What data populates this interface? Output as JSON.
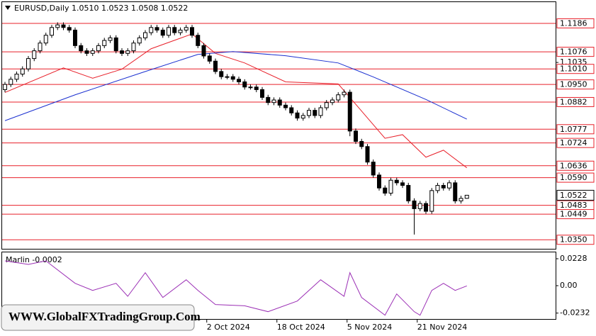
{
  "chart_data": {
    "type": "candlestick",
    "title": "EURUSD,Daily  1.0510 1.0523 1.0508 1.0522",
    "ylim": [
      1.0315,
      1.1268
    ],
    "yticks": [
      1.1035
    ],
    "open": [
      1.093,
      1.095,
      1.097,
      1.099,
      1.101,
      1.105,
      1.108,
      1.111,
      1.114,
      1.117,
      1.118,
      1.117,
      1.116,
      1.11,
      1.108,
      1.107,
      1.108,
      1.11,
      1.112,
      1.113,
      1.108,
      1.107,
      1.108,
      1.111,
      1.113,
      1.115,
      1.117,
      1.116,
      1.114,
      1.117,
      1.115,
      1.116,
      1.117,
      1.114,
      1.11,
      1.106,
      1.104,
      1.1,
      1.098,
      1.098,
      1.097,
      1.096,
      1.094,
      1.094,
      1.093,
      1.09,
      1.088,
      1.089,
      1.087,
      1.086,
      1.084,
      1.082,
      1.083,
      1.085,
      1.083,
      1.086,
      1.088,
      1.089,
      1.091,
      1.092,
      1.077,
      1.073,
      1.071,
      1.065,
      1.06,
      1.055,
      1.053,
      1.058,
      1.057,
      1.056,
      1.05,
      1.047,
      1.049,
      1.046,
      1.054,
      1.056,
      1.055,
      1.057,
      1.05,
      1.051
    ],
    "high": [
      1.096,
      1.098,
      1.1,
      1.102,
      1.106,
      1.109,
      1.112,
      1.115,
      1.118,
      1.119,
      1.119,
      1.118,
      1.117,
      1.111,
      1.109,
      1.109,
      1.111,
      1.113,
      1.114,
      1.114,
      1.109,
      1.109,
      1.112,
      1.114,
      1.116,
      1.118,
      1.118,
      1.117,
      1.118,
      1.118,
      1.117,
      1.118,
      1.118,
      1.115,
      1.111,
      1.107,
      1.105,
      1.101,
      1.099,
      1.099,
      1.098,
      1.097,
      1.095,
      1.095,
      1.094,
      1.091,
      1.09,
      1.09,
      1.088,
      1.087,
      1.085,
      1.084,
      1.086,
      1.086,
      1.087,
      1.089,
      1.09,
      1.092,
      1.093,
      1.093,
      1.078,
      1.074,
      1.072,
      1.066,
      1.061,
      1.056,
      1.059,
      1.059,
      1.058,
      1.057,
      1.051,
      1.05,
      1.05,
      1.055,
      1.057,
      1.057,
      1.058,
      1.058,
      1.052,
      1.0523
    ],
    "low": [
      1.092,
      1.094,
      1.096,
      1.098,
      1.1,
      1.104,
      1.107,
      1.11,
      1.113,
      1.116,
      1.116,
      1.115,
      1.109,
      1.107,
      1.106,
      1.106,
      1.107,
      1.109,
      1.111,
      1.107,
      1.106,
      1.106,
      1.107,
      1.11,
      1.112,
      1.114,
      1.115,
      1.113,
      1.113,
      1.114,
      1.114,
      1.115,
      1.113,
      1.109,
      1.105,
      1.103,
      1.099,
      1.097,
      1.097,
      1.096,
      1.095,
      1.093,
      1.093,
      1.092,
      1.089,
      1.087,
      1.087,
      1.086,
      1.085,
      1.083,
      1.081,
      1.081,
      1.082,
      1.082,
      1.082,
      1.085,
      1.087,
      1.088,
      1.09,
      1.075,
      1.072,
      1.07,
      1.064,
      1.059,
      1.054,
      1.052,
      1.052,
      1.056,
      1.055,
      1.049,
      1.037,
      1.046,
      1.045,
      1.045,
      1.053,
      1.054,
      1.054,
      1.049,
      1.049,
      1.0508
    ],
    "close": [
      1.095,
      1.097,
      1.099,
      1.101,
      1.105,
      1.108,
      1.111,
      1.114,
      1.117,
      1.118,
      1.117,
      1.116,
      1.11,
      1.108,
      1.107,
      1.108,
      1.11,
      1.112,
      1.113,
      1.108,
      1.107,
      1.108,
      1.111,
      1.113,
      1.115,
      1.117,
      1.116,
      1.114,
      1.117,
      1.115,
      1.116,
      1.117,
      1.114,
      1.11,
      1.106,
      1.104,
      1.1,
      1.098,
      1.098,
      1.097,
      1.096,
      1.094,
      1.094,
      1.093,
      1.09,
      1.088,
      1.089,
      1.087,
      1.086,
      1.084,
      1.082,
      1.083,
      1.085,
      1.083,
      1.086,
      1.088,
      1.089,
      1.091,
      1.092,
      1.077,
      1.073,
      1.071,
      1.065,
      1.06,
      1.055,
      1.053,
      1.058,
      1.057,
      1.056,
      1.05,
      1.047,
      1.049,
      1.046,
      1.054,
      1.056,
      1.055,
      1.057,
      1.05,
      1.051,
      1.0522
    ],
    "up_color": "#ffffff",
    "down_color": "#000000",
    "moving_averages": [
      {
        "color": "#e8202a",
        "index": [
          0,
          10,
          15,
          20,
          25,
          32,
          36,
          41,
          48,
          57,
          65,
          68,
          72,
          75,
          79
        ],
        "values": [
          1.0919,
          1.1014,
          1.0974,
          1.1009,
          1.1088,
          1.1145,
          1.107,
          1.1033,
          1.096,
          1.0952,
          1.0742,
          1.0756,
          1.0669,
          1.0696,
          1.0628
        ]
      },
      {
        "color": "#1a2fd0",
        "index": [
          0,
          12,
          24,
          33,
          39,
          48,
          57,
          63,
          72,
          79
        ],
        "values": [
          1.081,
          1.091,
          1.1,
          1.1066,
          1.1077,
          1.1061,
          1.1033,
          1.0979,
          1.0892,
          1.0816
        ]
      }
    ],
    "levels": [
      1.1186,
      1.1076,
      {
        "value": 1.101,
        "label": "1.1010"
      },
      {
        "value": 1.095,
        "label": "1.0950"
      },
      1.0882,
      1.0777,
      1.0724,
      1.0636,
      {
        "value": 1.059,
        "label": "1.0590"
      },
      1.0483,
      1.0449,
      {
        "value": 1.035,
        "label": "1.0350"
      }
    ],
    "level_color": "#e8202a",
    "last_price": 1.0522,
    "xlabels": [
      {
        "index": 35,
        "label": "2 Oct 2024"
      },
      {
        "index": 47,
        "label": "18 Oct 2024"
      },
      {
        "index": 59,
        "label": "5 Nov 2024"
      },
      {
        "index": 71,
        "label": "21 Nov 2024"
      }
    ],
    "oscillator": {
      "title": "Marlin -0.0002",
      "color": "#9b2fb5",
      "ylim": [
        -0.0282,
        0.0282
      ],
      "yticks": [
        0.0228,
        {
          "value": 0,
          "label": "0.00"
        },
        -0.0232
      ],
      "index": [
        0,
        4,
        7,
        12,
        15,
        19,
        21,
        24,
        27,
        31,
        33,
        36,
        41,
        45,
        50,
        54,
        58,
        59,
        61,
        65,
        67,
        70,
        71,
        73,
        75,
        77,
        79
      ],
      "values": [
        0.021,
        0.018,
        0.021,
        0.002,
        -0.004,
        0.002,
        -0.009,
        0.011,
        -0.01,
        0.005,
        -0.004,
        -0.016,
        -0.017,
        -0.022,
        -0.013,
        0.005,
        -0.009,
        0.011,
        -0.01,
        -0.025,
        -0.007,
        -0.022,
        -0.025,
        -0.004,
        0.002,
        -0.004,
        -0.0002
      ]
    },
    "watermark": "WWW.GlobalFXTradingGroup.Com"
  }
}
